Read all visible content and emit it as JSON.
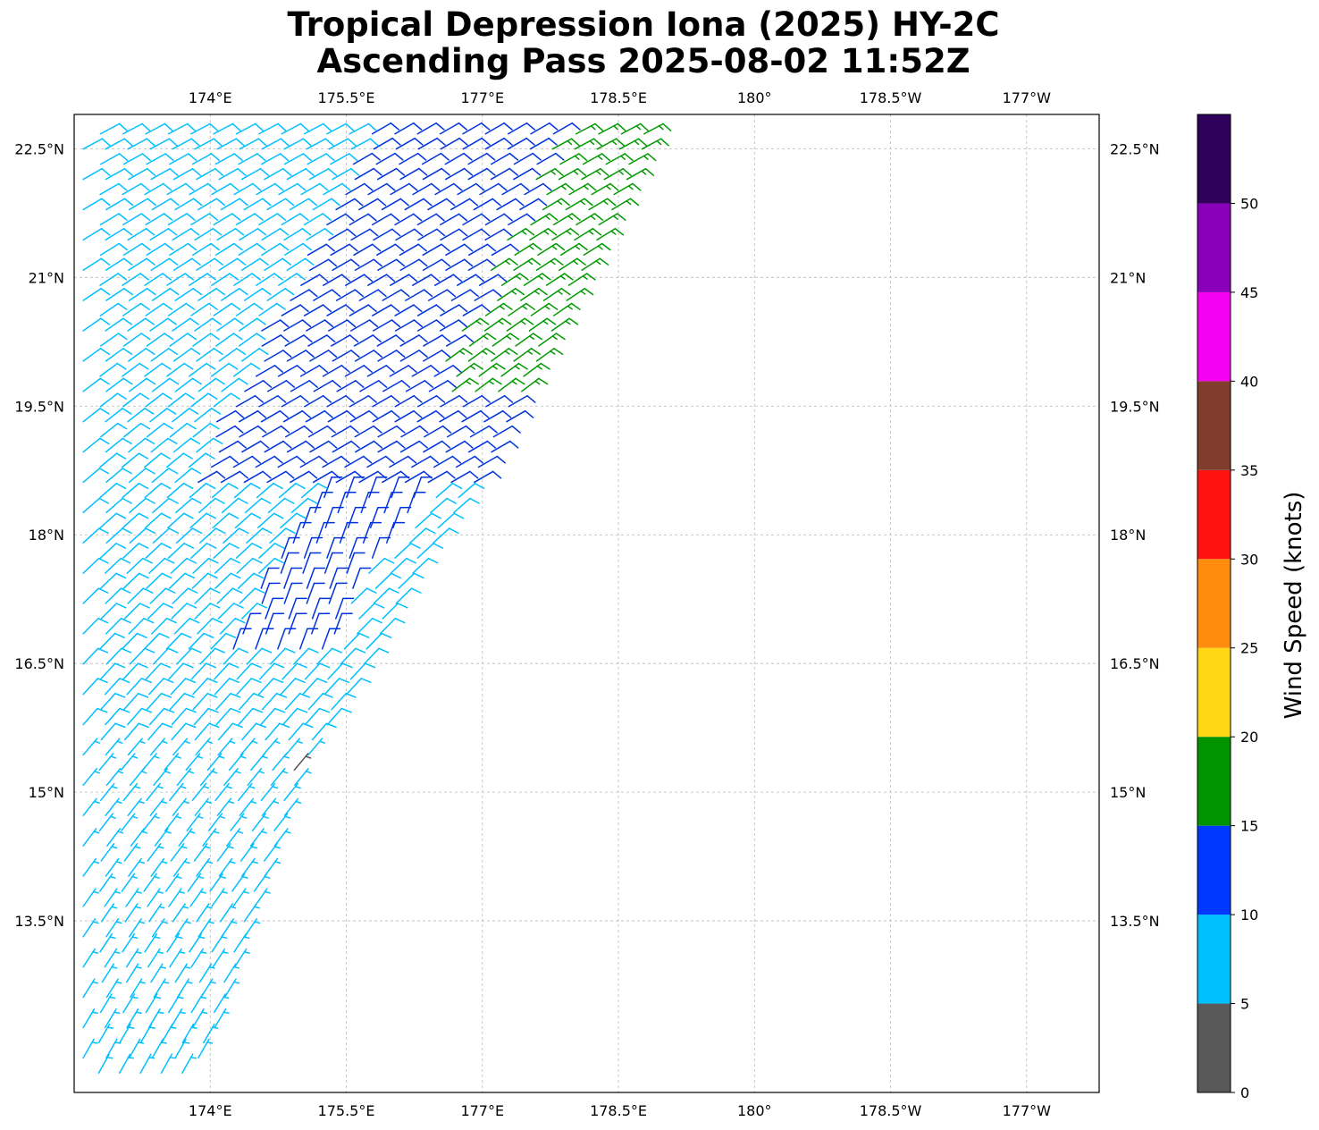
{
  "title": {
    "line1": "Tropical Depression Iona (2025) HY-2C",
    "line2": "Ascending Pass 2025-08-02 11:52Z"
  },
  "map": {
    "extent": {
      "lon_min": 172.5,
      "lon_max": 183.8,
      "lat_min": 11.5,
      "lat_max": 22.9
    },
    "lon_ticks": [
      {
        "value": 174.0,
        "label": "174°E"
      },
      {
        "value": 175.5,
        "label": "175.5°E"
      },
      {
        "value": 177.0,
        "label": "177°E"
      },
      {
        "value": 178.5,
        "label": "178.5°E"
      },
      {
        "value": 180.0,
        "label": "180°"
      },
      {
        "value": 181.5,
        "label": "178.5°W"
      },
      {
        "value": 183.0,
        "label": "177°W"
      }
    ],
    "lat_ticks": [
      {
        "value": 22.5,
        "label": "22.5°N"
      },
      {
        "value": 21.0,
        "label": "21°N"
      },
      {
        "value": 19.5,
        "label": "19.5°N"
      },
      {
        "value": 18.0,
        "label": "18°N"
      },
      {
        "value": 16.5,
        "label": "16.5°N"
      },
      {
        "value": 15.0,
        "label": "15°N"
      },
      {
        "value": 13.5,
        "label": "13.5°N"
      }
    ],
    "gridlines": true,
    "grid_color": "#bbbbbb",
    "swath": {
      "description_free": true,
      "east_edge_points": [
        [
          178.95,
          22.9
        ],
        [
          177.0,
          18.75
        ],
        [
          176.2,
          17.5
        ],
        [
          175.6,
          16.3
        ],
        [
          175.0,
          15.3
        ],
        [
          174.0,
          12.1
        ],
        [
          173.6,
          11.5
        ]
      ],
      "wind_direction_deg_from": 60,
      "speed_classes_knots": [
        {
          "range": "5-10",
          "color": "#00bfff"
        },
        {
          "range": "10-15",
          "color": "#0033dd"
        },
        {
          "range": "15-20",
          "color": "#009900"
        },
        {
          "range": "0-5",
          "color": "#555555"
        }
      ]
    }
  },
  "colorbar": {
    "label": "Wind Speed (knots)",
    "bins": [
      {
        "min": 0,
        "max": 5,
        "color": "#595959"
      },
      {
        "min": 5,
        "max": 10,
        "color": "#00bfff"
      },
      {
        "min": 10,
        "max": 15,
        "color": "#0038ff"
      },
      {
        "min": 15,
        "max": 20,
        "color": "#009500"
      },
      {
        "min": 20,
        "max": 25,
        "color": "#ffd614"
      },
      {
        "min": 25,
        "max": 30,
        "color": "#ff8c0d"
      },
      {
        "min": 30,
        "max": 35,
        "color": "#ff1212"
      },
      {
        "min": 35,
        "max": 40,
        "color": "#803d2b"
      },
      {
        "min": 40,
        "max": 45,
        "color": "#f500f0"
      },
      {
        "min": 45,
        "max": 50,
        "color": "#8a00ba"
      },
      {
        "min": 50,
        "max": 55,
        "color": "#2e005c"
      }
    ],
    "ticks": [
      "0",
      "5",
      "10",
      "15",
      "20",
      "25",
      "30",
      "35",
      "40",
      "45",
      "50"
    ]
  }
}
